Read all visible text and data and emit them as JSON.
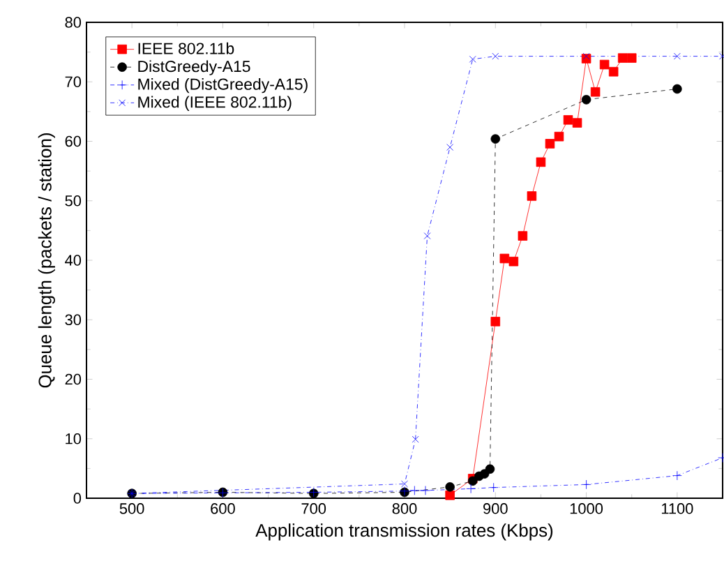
{
  "chart_data": {
    "type": "line",
    "xlabel": "Application transmission rates (Kbps)",
    "ylabel": "Queue length (packets / station)",
    "xlim": [
      450,
      1150
    ],
    "ylim": [
      0,
      80
    ],
    "xticks": [
      500,
      600,
      700,
      800,
      900,
      1000,
      1100
    ],
    "yticks": [
      0,
      10,
      20,
      30,
      40,
      50,
      60,
      70,
      80
    ],
    "grid": false,
    "legend": "top left",
    "series": [
      {
        "name": "IEEE 802.11b",
        "color": "#ff0000",
        "marker": "square",
        "line_style": "solid",
        "x": [
          850,
          875,
          900,
          910,
          920,
          930,
          940,
          950,
          960,
          970,
          980,
          990,
          1000,
          1010,
          1020,
          1030,
          1040,
          1050
        ],
        "values": [
          0.5,
          3.3,
          29.7,
          40.3,
          39.8,
          44.1,
          50.8,
          56.5,
          59.6,
          60.8,
          63.6,
          63.1,
          73.9,
          68.3,
          72.9,
          71.7,
          74,
          74
        ]
      },
      {
        "name": "DistGreedy-A15",
        "color": "#000000",
        "marker": "circle",
        "line_style": "dashed",
        "x": [
          500,
          600,
          700,
          800,
          850,
          875,
          882,
          888,
          894,
          900,
          1000,
          1100
        ],
        "values": [
          0.8,
          1.0,
          0.8,
          1.0,
          1.9,
          2.9,
          3.7,
          4.1,
          4.9,
          60.4,
          67,
          68.8
        ]
      },
      {
        "name": "Mixed (DistGreedy-A15)",
        "color": "#0000ff",
        "marker": "cross",
        "line_style": "dotted",
        "x": [
          500,
          600,
          700,
          800,
          811,
          823,
          873,
          898,
          1000,
          1100,
          1150
        ],
        "values": [
          0.8,
          0.9,
          1.0,
          1.2,
          1.3,
          1.3,
          1.6,
          1.8,
          2.3,
          3.8,
          6.8
        ]
      },
      {
        "name": "Mixed (IEEE 802.11b)",
        "color": "#0000ff",
        "marker": "x",
        "line_style": "dotted",
        "x": [
          500,
          800,
          812,
          825,
          850,
          875,
          900,
          1000,
          1100,
          1150
        ],
        "values": [
          0.8,
          2.4,
          9.9,
          44.1,
          59,
          73.8,
          74.3,
          74.3,
          74.3,
          74.3
        ]
      }
    ]
  }
}
